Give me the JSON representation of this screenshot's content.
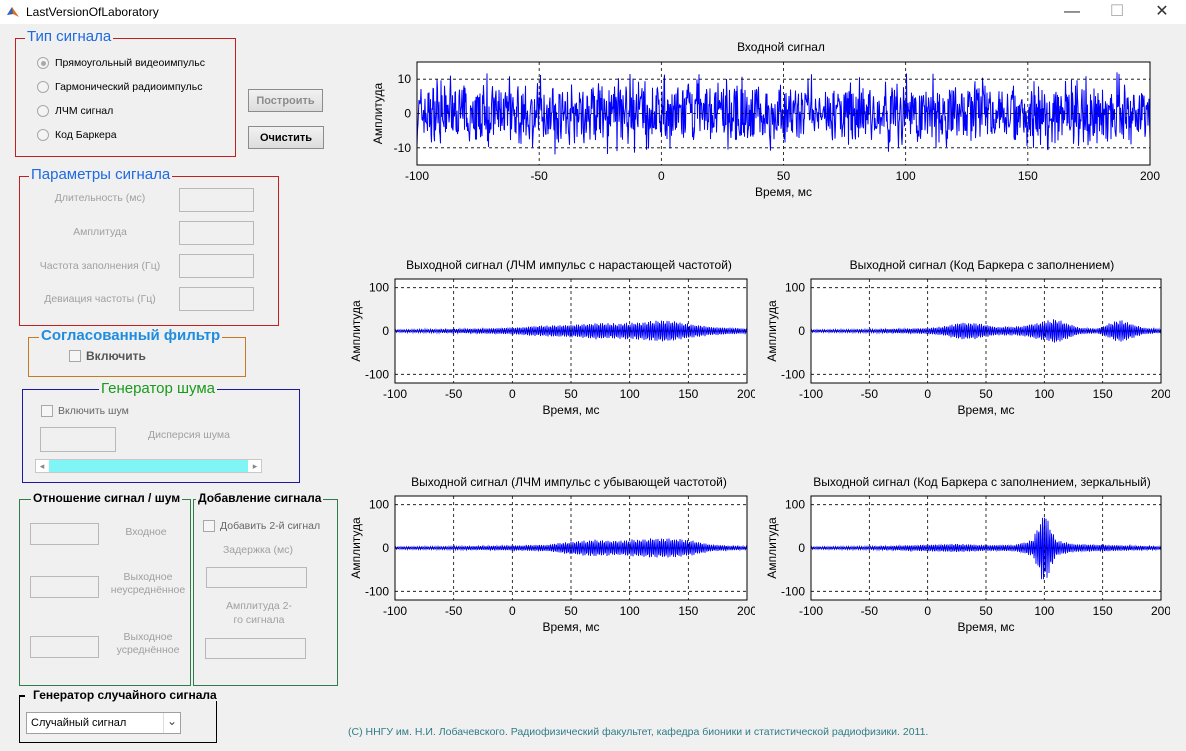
{
  "window": {
    "title": "LastVersionOfLaboratory",
    "minimize": "—",
    "maximize": "☐",
    "close": "✕"
  },
  "signal_type": {
    "title": "Тип сигнала",
    "options": [
      {
        "label": "Прямоугольный видеоимпульс",
        "selected": true
      },
      {
        "label": "Гармонический радиоимпульс",
        "selected": false
      },
      {
        "label": "ЛЧМ сигнал",
        "selected": false
      },
      {
        "label": "Код Баркера",
        "selected": false
      }
    ]
  },
  "buttons": {
    "build": "Построить",
    "clear": "Очистить"
  },
  "signal_params": {
    "title": "Параметры сигнала",
    "fields": [
      {
        "label": "Длительность (мс)",
        "value": ""
      },
      {
        "label": "Амплитуда",
        "value": ""
      },
      {
        "label": "Частота заполнения (Гц)",
        "value": ""
      },
      {
        "label": "Девиация частоты (Гц)",
        "value": ""
      }
    ]
  },
  "matched_filter": {
    "title": "Согласованный фильтр",
    "enable_label": "Включить",
    "checked": false
  },
  "noise_generator": {
    "title": "Генератор шума",
    "enable_label": "Включить шум",
    "checked": false,
    "variance_label": "Дисперсия шума",
    "variance_value": "",
    "slider_left_arrow": "◂",
    "slider_right_arrow": "▸"
  },
  "snr": {
    "title": "Отношение сигнал / шум",
    "input_label": "Входное",
    "output_unavg_label": "Выходное неусреднённое",
    "output_avg_label": "Выходное усреднённое",
    "values": [
      "",
      "",
      ""
    ]
  },
  "add_signal": {
    "title": "Добавление сигнала",
    "enable_label": "Добавить 2-й сигнал",
    "checked": false,
    "delay_label": "Задержка (мс)",
    "amplitude_label": "Амплитуда 2-го сигнала"
  },
  "random_generator": {
    "title": "Генератор случайного сигнала",
    "selected": "Случайный сигнал",
    "arrow": "⌄"
  },
  "colors": {
    "signal": "#0000ff",
    "signal_type_border": "#c02020",
    "params_border": "#c02020",
    "filter_border": "#c87a20",
    "filter_title": "#1e8de0",
    "noise_border": "#1a1aa0",
    "noise_title": "#1a9a1a",
    "snr_border": "#2e7d4a",
    "slider_fill": "#7ff5f5",
    "footer": "#2f7d86"
  },
  "footer": "(С) ННГУ им. Н.И. Лобачевского. Радиофизический факультет, кафедра бионики и статистической радиофизики. 2011.",
  "chart_data": [
    {
      "type": "line",
      "title": "Входной сигнал",
      "xlabel": "Время, мс",
      "ylabel": "Амплитуда",
      "xlim": [
        -100,
        200
      ],
      "ylim": [
        -15,
        15
      ],
      "xticks": [
        "-100",
        "-50",
        "0",
        "50",
        "100",
        "150",
        "200"
      ],
      "yticks": [
        "10",
        "0",
        "-10"
      ],
      "grid": "dashed",
      "envelope": {
        "x": [
          -100,
          200
        ],
        "amplitude": [
          10,
          10
        ],
        "peak": 12
      }
    },
    {
      "type": "line",
      "title": "Выходной сигнал (ЛЧМ импульс с нарастающей частотой)",
      "xlabel": "Время, мс",
      "ylabel": "Амплитуда",
      "xlim": [
        -100,
        200
      ],
      "ylim": [
        -120,
        120
      ],
      "xticks": [
        "-100",
        "-50",
        "0",
        "50",
        "100",
        "150",
        "200"
      ],
      "yticks": [
        "100",
        "0",
        "-100"
      ],
      "grid": "dashed",
      "envelope": {
        "x": [
          -100,
          -50,
          0,
          20,
          35,
          55,
          75,
          90,
          110,
          130,
          150,
          170,
          185,
          200
        ],
        "amplitude": [
          3,
          5,
          8,
          12,
          14,
          16,
          20,
          18,
          22,
          27,
          18,
          10,
          8,
          6
        ]
      }
    },
    {
      "type": "line",
      "title": "Выходной сигнал (Код Баркера с заполнением)",
      "xlabel": "Время, мс",
      "ylabel": "Амплитуда",
      "xlim": [
        -100,
        200
      ],
      "ylim": [
        -120,
        120
      ],
      "xticks": [
        "-100",
        "-50",
        "0",
        "50",
        "100",
        "150",
        "200"
      ],
      "yticks": [
        "100",
        "0",
        "-100"
      ],
      "grid": "dashed",
      "envelope": {
        "x": [
          -100,
          -50,
          0,
          15,
          30,
          45,
          60,
          80,
          95,
          110,
          130,
          145,
          165,
          185,
          200
        ],
        "amplitude": [
          3,
          4,
          7,
          12,
          22,
          18,
          10,
          12,
          20,
          30,
          8,
          6,
          28,
          8,
          5
        ]
      }
    },
    {
      "type": "line",
      "title": "Выходной сигнал (ЛЧМ импульс с убывающей частотой)",
      "xlabel": "Время, мс",
      "ylabel": "Амплитуда",
      "xlim": [
        -100,
        200
      ],
      "ylim": [
        -120,
        120
      ],
      "xticks": [
        "-100",
        "-50",
        "0",
        "50",
        "100",
        "150",
        "200"
      ],
      "yticks": [
        "100",
        "0",
        "-100"
      ],
      "grid": "dashed",
      "envelope": {
        "x": [
          -100,
          -50,
          0,
          30,
          50,
          70,
          90,
          110,
          130,
          150,
          170,
          190,
          200
        ],
        "amplitude": [
          3,
          4,
          6,
          8,
          16,
          20,
          18,
          22,
          24,
          20,
          8,
          5,
          4
        ]
      }
    },
    {
      "type": "line",
      "title": "Выходной сигнал (Код Баркера с заполнением, зеркальный)",
      "xlabel": "Время, мс",
      "ylabel": "Амплитуда",
      "xlim": [
        -100,
        200
      ],
      "ylim": [
        -120,
        120
      ],
      "xticks": [
        "-100",
        "-50",
        "0",
        "50",
        "100",
        "150",
        "200"
      ],
      "yticks": [
        "100",
        "0",
        "-100"
      ],
      "grid": "dashed",
      "envelope": {
        "x": [
          -100,
          -50,
          0,
          25,
          50,
          75,
          90,
          95,
          100,
          105,
          110,
          125,
          150,
          175,
          200
        ],
        "amplitude": [
          3,
          4,
          8,
          10,
          7,
          8,
          20,
          55,
          95,
          55,
          20,
          10,
          8,
          6,
          4
        ]
      }
    }
  ]
}
